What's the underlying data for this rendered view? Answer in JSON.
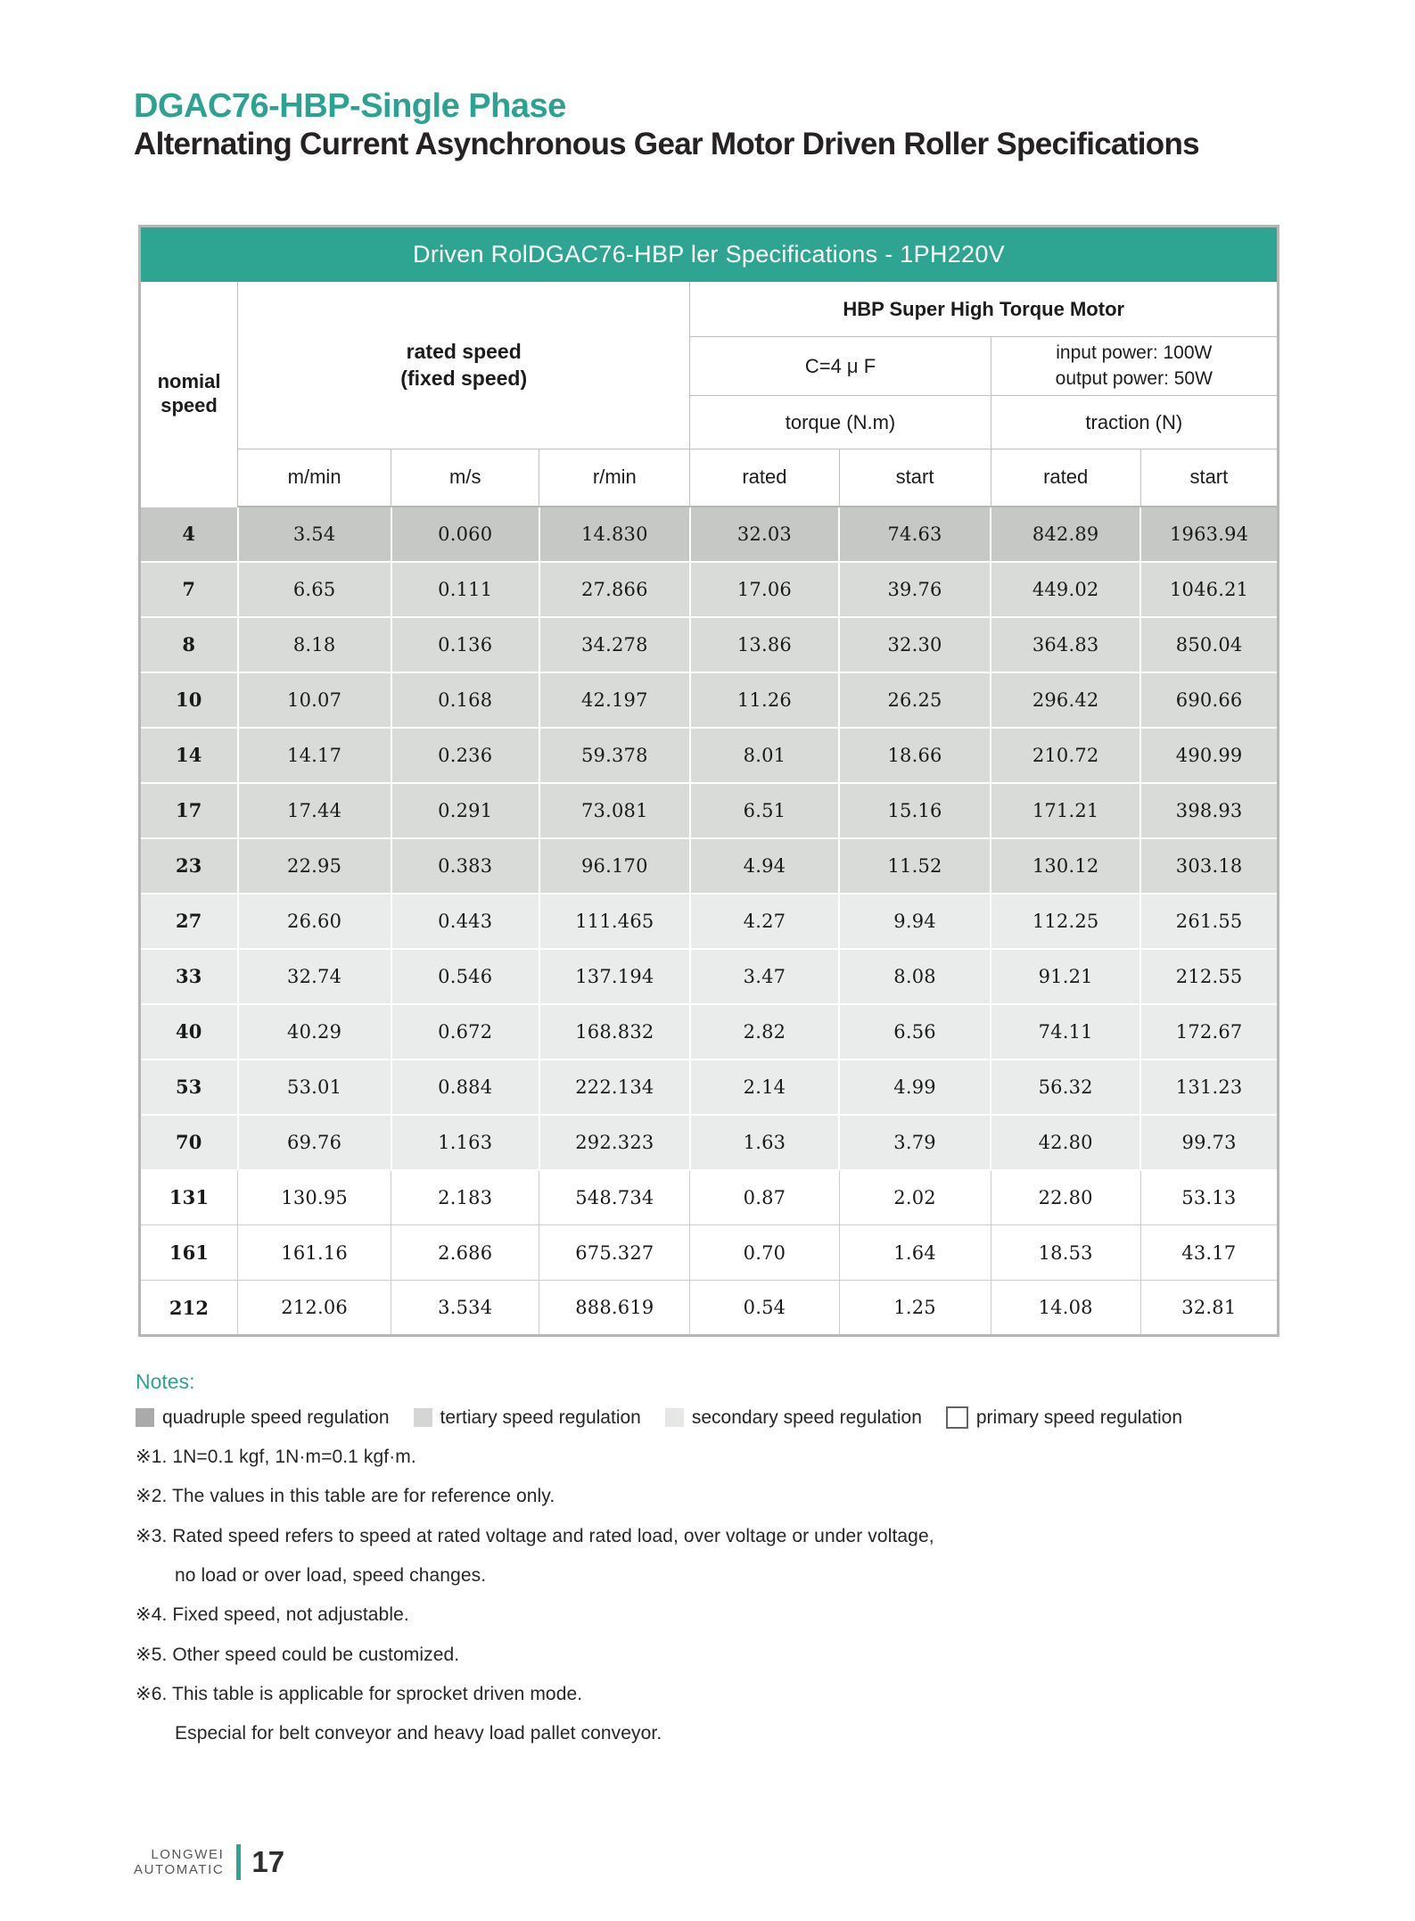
{
  "page": {
    "title": "DGAC76-HBP-Single Phase",
    "subtitle": "Alternating Current Asynchronous Gear Motor Driven Roller Specifications"
  },
  "table": {
    "caption": "Driven RolDGAC76-HBP ler Specifications - 1PH220V",
    "header": {
      "nominal_speed": "nomial speed",
      "rated_speed_line1": "rated speed",
      "rated_speed_line2": "(fixed speed)",
      "motor_group": "HBP Super High Torque Motor",
      "capacitor": "C=4 μ F",
      "power_line1": "input power: 100W",
      "power_line2": "output power: 50W",
      "torque": "torque (N.m)",
      "traction": "traction (N)",
      "units": [
        "m/min",
        "m/s",
        "r/min"
      ],
      "sub_headers": [
        "rated",
        "start",
        "rated",
        "start"
      ]
    },
    "rows": [
      {
        "speed": "4",
        "tier": "quadruple",
        "values": [
          "3.54",
          "0.060",
          "14.830",
          "32.03",
          "74.63",
          "842.89",
          "1963.94"
        ]
      },
      {
        "speed": "7",
        "tier": "tertiary",
        "values": [
          "6.65",
          "0.111",
          "27.866",
          "17.06",
          "39.76",
          "449.02",
          "1046.21"
        ]
      },
      {
        "speed": "8",
        "tier": "tertiary",
        "values": [
          "8.18",
          "0.136",
          "34.278",
          "13.86",
          "32.30",
          "364.83",
          "850.04"
        ]
      },
      {
        "speed": "10",
        "tier": "tertiary",
        "values": [
          "10.07",
          "0.168",
          "42.197",
          "11.26",
          "26.25",
          "296.42",
          "690.66"
        ]
      },
      {
        "speed": "14",
        "tier": "tertiary",
        "values": [
          "14.17",
          "0.236",
          "59.378",
          "8.01",
          "18.66",
          "210.72",
          "490.99"
        ]
      },
      {
        "speed": "17",
        "tier": "tertiary",
        "values": [
          "17.44",
          "0.291",
          "73.081",
          "6.51",
          "15.16",
          "171.21",
          "398.93"
        ]
      },
      {
        "speed": "23",
        "tier": "tertiary",
        "values": [
          "22.95",
          "0.383",
          "96.170",
          "4.94",
          "11.52",
          "130.12",
          "303.18"
        ]
      },
      {
        "speed": "27",
        "tier": "secondary",
        "values": [
          "26.60",
          "0.443",
          "111.465",
          "4.27",
          "9.94",
          "112.25",
          "261.55"
        ]
      },
      {
        "speed": "33",
        "tier": "secondary",
        "values": [
          "32.74",
          "0.546",
          "137.194",
          "3.47",
          "8.08",
          "91.21",
          "212.55"
        ]
      },
      {
        "speed": "40",
        "tier": "secondary",
        "values": [
          "40.29",
          "0.672",
          "168.832",
          "2.82",
          "6.56",
          "74.11",
          "172.67"
        ]
      },
      {
        "speed": "53",
        "tier": "secondary",
        "values": [
          "53.01",
          "0.884",
          "222.134",
          "2.14",
          "4.99",
          "56.32",
          "131.23"
        ]
      },
      {
        "speed": "70",
        "tier": "secondary",
        "values": [
          "69.76",
          "1.163",
          "292.323",
          "1.63",
          "3.79",
          "42.80",
          "99.73"
        ]
      },
      {
        "speed": "131",
        "tier": "primary",
        "values": [
          "130.95",
          "2.183",
          "548.734",
          "0.87",
          "2.02",
          "22.80",
          "53.13"
        ]
      },
      {
        "speed": "161",
        "tier": "primary",
        "values": [
          "161.16",
          "2.686",
          "675.327",
          "0.70",
          "1.64",
          "18.53",
          "43.17"
        ]
      },
      {
        "speed": "212",
        "tier": "primary",
        "values": [
          "212.06",
          "3.534",
          "888.619",
          "0.54",
          "1.25",
          "14.08",
          "32.81"
        ]
      }
    ]
  },
  "notes": {
    "heading": "Notes:",
    "legend": [
      {
        "label": "quadruple speed regulation",
        "color": "#a9aaa9"
      },
      {
        "label": "tertiary speed regulation",
        "color": "#d3d6d3"
      },
      {
        "label": "secondary speed regulation",
        "color": "#e6e8e6"
      },
      {
        "label": "primary speed regulation",
        "color": "#ffffff"
      }
    ],
    "items": [
      "※1. 1N=0.1 kgf, 1N·m=0.1 kgf·m.",
      "※2. The values in this table are for reference only.",
      "※3. Rated speed refers to speed at rated voltage and rated load, over voltage or under voltage,",
      "no load or over load, speed changes.",
      "※4. Fixed speed, not adjustable.",
      "※5. Other speed could be customized.",
      "※6. This table is applicable for sprocket driven mode.",
      "Especial for belt conveyor and heavy load pallet conveyor."
    ]
  },
  "footer": {
    "brand_line1": "LONGWEI",
    "brand_line2": "AUTOMATIC",
    "page_number": "17"
  },
  "colors": {
    "accent_teal": "#2ea593",
    "tier_quadruple": "#c6c8c6",
    "tier_tertiary": "#d8dbd8",
    "tier_secondary": "#eaeceb",
    "tier_primary": "#ffffff"
  }
}
